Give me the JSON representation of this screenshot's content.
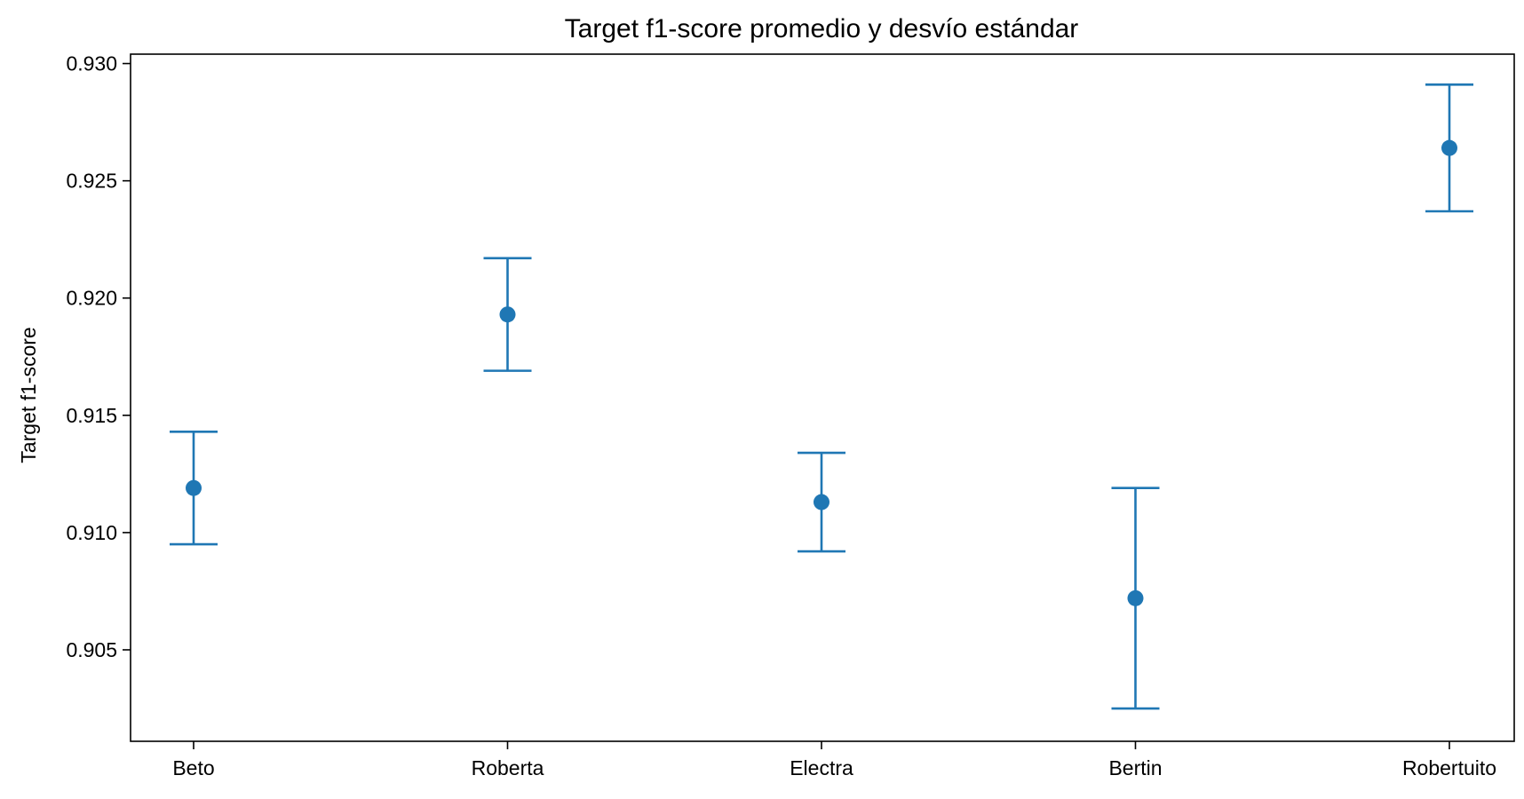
{
  "chart_data": {
    "type": "errorbar",
    "title": "Target f1-score promedio y desvío estándar",
    "xlabel": "",
    "ylabel": "Target f1-score",
    "categories": [
      "Beto",
      "Roberta",
      "Electra",
      "Bertin",
      "Robertuito"
    ],
    "series": [
      {
        "values": [
          0.9119,
          0.9193,
          0.9113,
          0.9072,
          0.9264
        ],
        "std": [
          0.0024,
          0.0024,
          0.0021,
          0.0047,
          0.0027
        ]
      }
    ],
    "ylim": [
      0.9011,
      0.9304
    ],
    "yticks": [
      0.905,
      0.91,
      0.915,
      0.92,
      0.925,
      0.93
    ],
    "ytick_labels": [
      "0.905",
      "0.910",
      "0.915",
      "0.920",
      "0.925",
      "0.930"
    ],
    "grid": false,
    "legend": "none",
    "color": "#1f77b4"
  }
}
